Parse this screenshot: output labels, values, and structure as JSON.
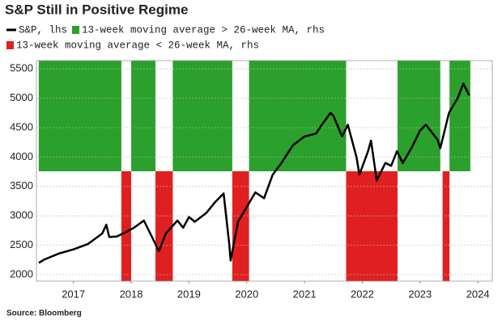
{
  "chart_data": {
    "type": "line",
    "title": "S&P Still in Positive Regime",
    "source": "Source: Bloomberg",
    "x": [
      2016.9,
      2017.0,
      2017.25,
      2017.5,
      2017.75,
      2018.0,
      2018.07,
      2018.12,
      2018.25,
      2018.4,
      2018.55,
      2018.72,
      2018.83,
      2018.98,
      2019.1,
      2019.3,
      2019.4,
      2019.5,
      2019.6,
      2019.8,
      2019.95,
      2020.1,
      2020.2,
      2020.22,
      2020.35,
      2020.5,
      2020.65,
      2020.8,
      2020.95,
      2021.1,
      2021.3,
      2021.5,
      2021.7,
      2021.8,
      2021.95,
      2022.0,
      2022.15,
      2022.25,
      2022.4,
      2022.45,
      2022.6,
      2022.65,
      2022.75,
      2022.9,
      2023.0,
      2023.1,
      2023.2,
      2023.35,
      2023.5,
      2023.6,
      2023.8,
      2023.85,
      2024.0,
      2024.15,
      2024.25,
      2024.3,
      2024.35
    ],
    "series": [
      {
        "name": "S&P, lhs",
        "color": "#000000",
        "values": [
          2200,
          2260,
          2360,
          2430,
          2520,
          2700,
          2850,
          2640,
          2650,
          2720,
          2800,
          2920,
          2700,
          2400,
          2700,
          2920,
          2800,
          2980,
          2900,
          3050,
          3230,
          3380,
          2500,
          2240,
          2900,
          3150,
          3400,
          3300,
          3700,
          3900,
          4200,
          4350,
          4400,
          4550,
          4750,
          4700,
          4350,
          4550,
          4000,
          3700,
          4100,
          4280,
          3600,
          3900,
          3850,
          4100,
          3900,
          4150,
          4450,
          4550,
          4300,
          4150,
          4750,
          5000,
          5250,
          5150,
          5050
        ]
      }
    ],
    "regimes": [
      {
        "name": "13-week moving average > 26-week MA, rhs",
        "color": "#2ca02c",
        "periods": [
          [
            2016.9,
            2018.33
          ],
          [
            2018.5,
            2018.92
          ],
          [
            2019.22,
            2020.25
          ],
          [
            2020.54,
            2022.22
          ],
          [
            2023.11,
            2023.85
          ],
          [
            2024.01,
            2024.37
          ]
        ]
      },
      {
        "name": "13-week moving average < 26-week MA, rhs",
        "color": "#e02020",
        "periods": [
          [
            2018.33,
            2018.5
          ],
          [
            2018.92,
            2019.22
          ],
          [
            2020.25,
            2020.54
          ],
          [
            2022.22,
            2023.11
          ],
          [
            2023.89,
            2024.01
          ]
        ]
      }
    ],
    "xlim": [
      2016.86,
      2024.75
    ],
    "xticks": [
      {
        "value": 2017.5,
        "label": "2017"
      },
      {
        "value": 2018.5,
        "label": "2018"
      },
      {
        "value": 2019.5,
        "label": "2019"
      },
      {
        "value": 2020.5,
        "label": "2020"
      },
      {
        "value": 2021.5,
        "label": "2021"
      },
      {
        "value": 2022.5,
        "label": "2022"
      },
      {
        "value": 2023.5,
        "label": "2023"
      },
      {
        "value": 2024.5,
        "label": "2024"
      }
    ],
    "ylim": [
      1890,
      5640
    ],
    "yticks": [
      2000,
      2500,
      3000,
      3500,
      4000,
      4500,
      5000,
      5500
    ],
    "grid": true
  }
}
